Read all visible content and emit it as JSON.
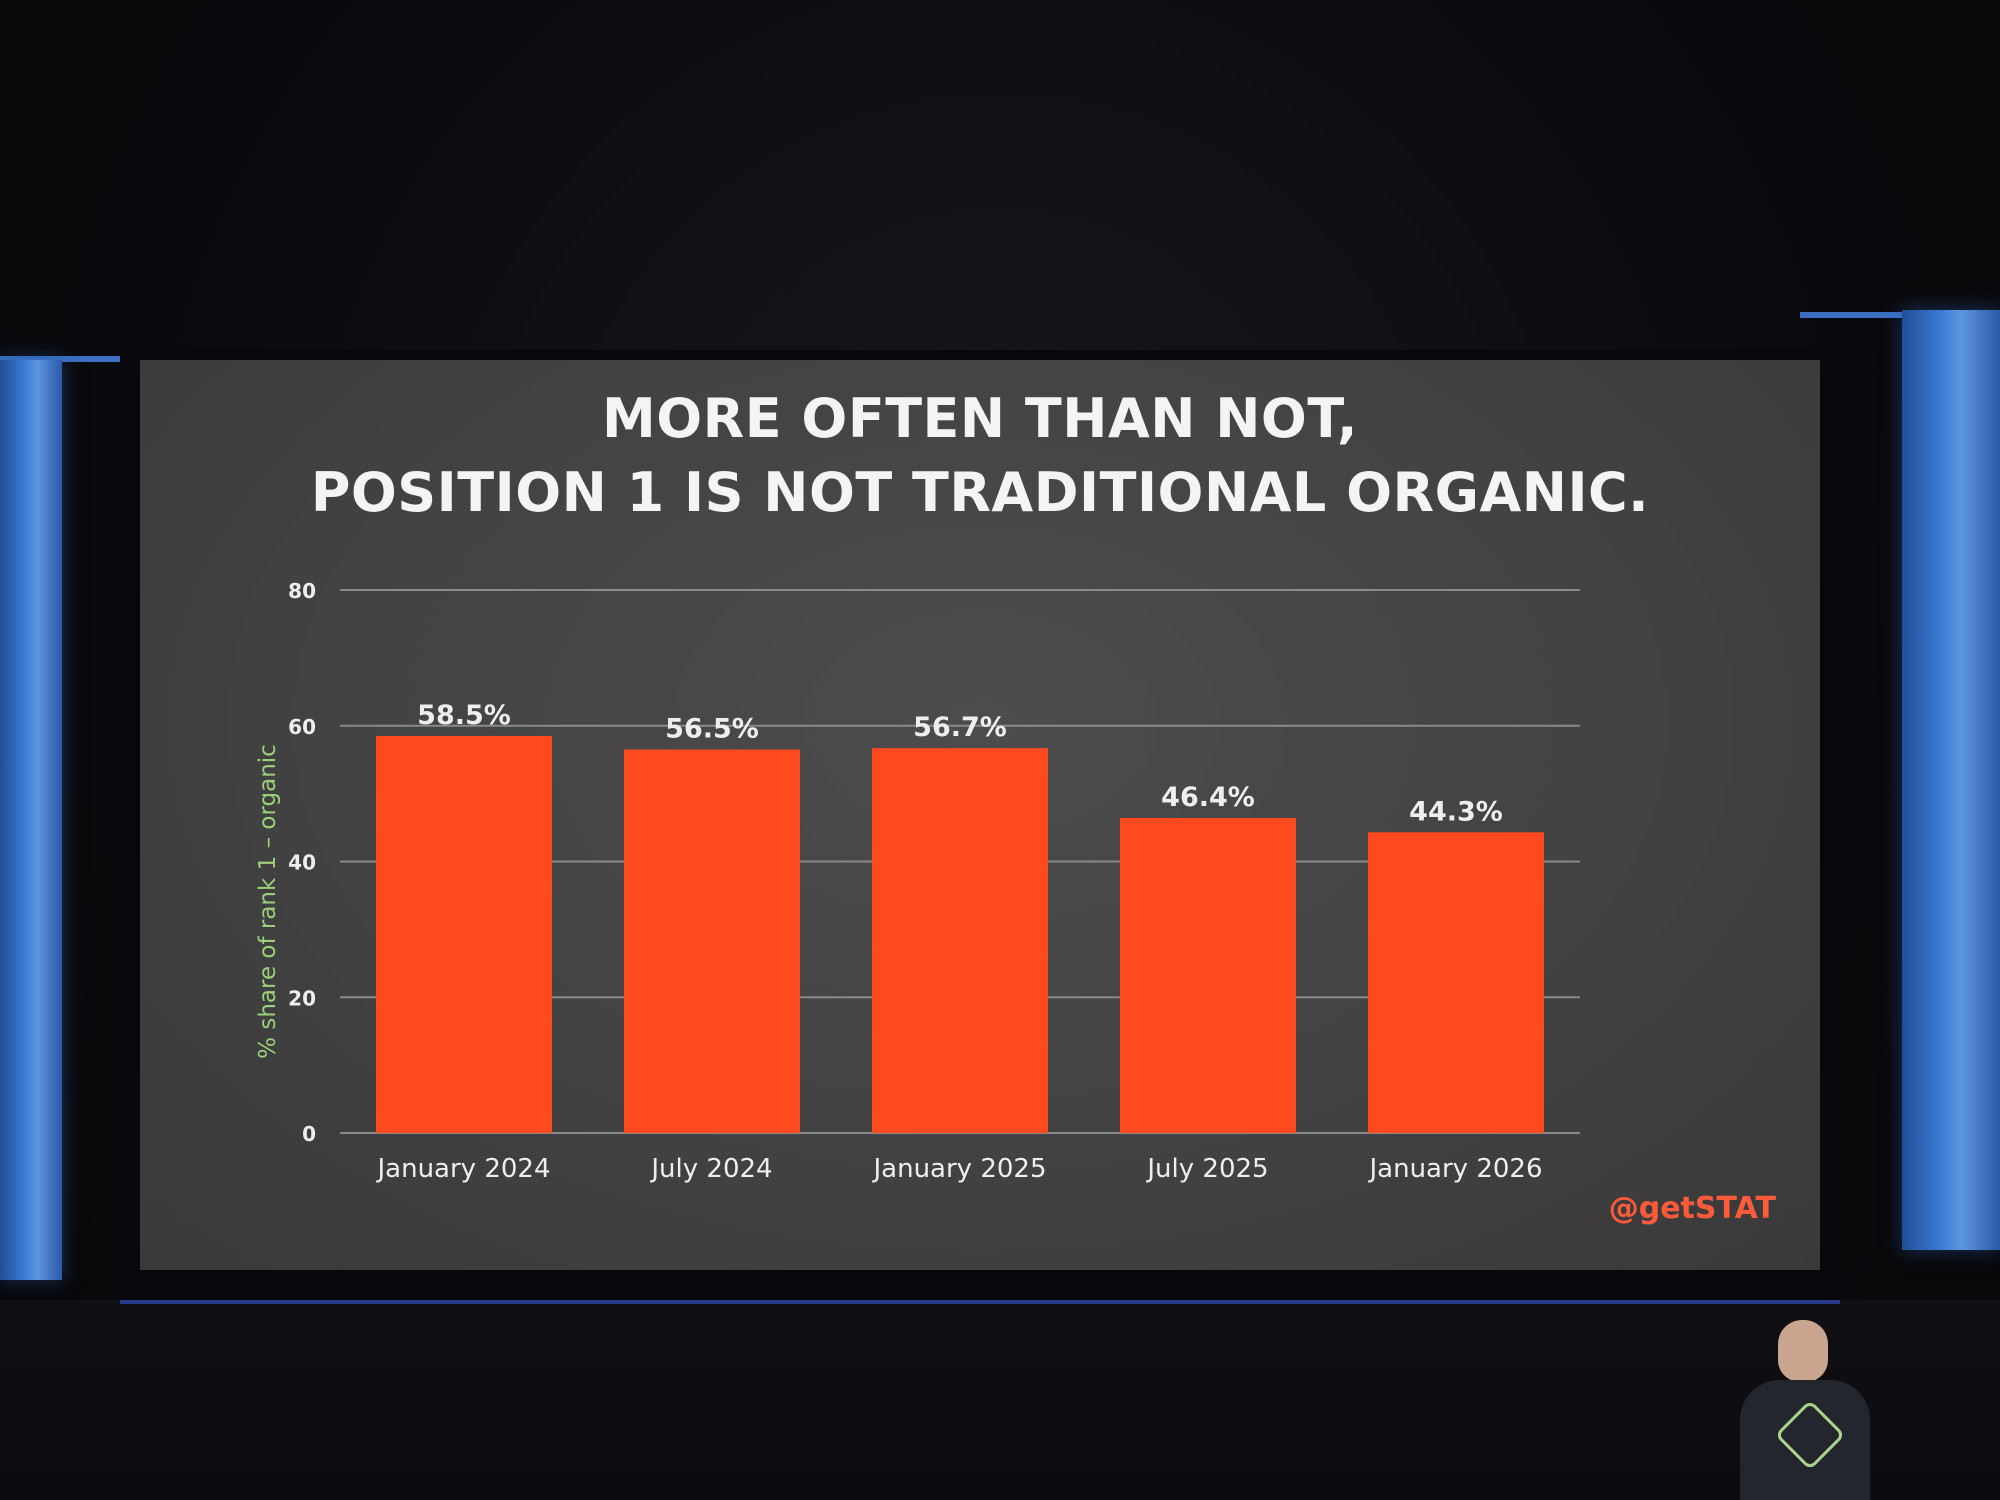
{
  "slide": {
    "title_lines": [
      "MORE OFTEN THAN NOT,",
      "POSITION 1 IS NOT TRADITIONAL ORGANIC."
    ],
    "watermark": "@getSTAT"
  },
  "chart_data": {
    "type": "bar",
    "categories": [
      "January 2024",
      "July 2024",
      "January 2025",
      "July 2025",
      "January 2026"
    ],
    "values": [
      58.5,
      56.5,
      56.7,
      46.4,
      44.3
    ],
    "value_labels": [
      "58.5%",
      "56.5%",
      "56.7%",
      "46.4%",
      "44.3%"
    ],
    "ylabel": "% share of rank 1 – organic",
    "xlabel": "",
    "ylim": [
      0,
      80
    ],
    "yticks": [
      0,
      20,
      40,
      60,
      80
    ],
    "grid": true,
    "colors": {
      "bar": "#ff4a20",
      "text": "#eeeeee",
      "axis_label": "#9ad07a",
      "gridline": "#8a8a8a"
    }
  }
}
